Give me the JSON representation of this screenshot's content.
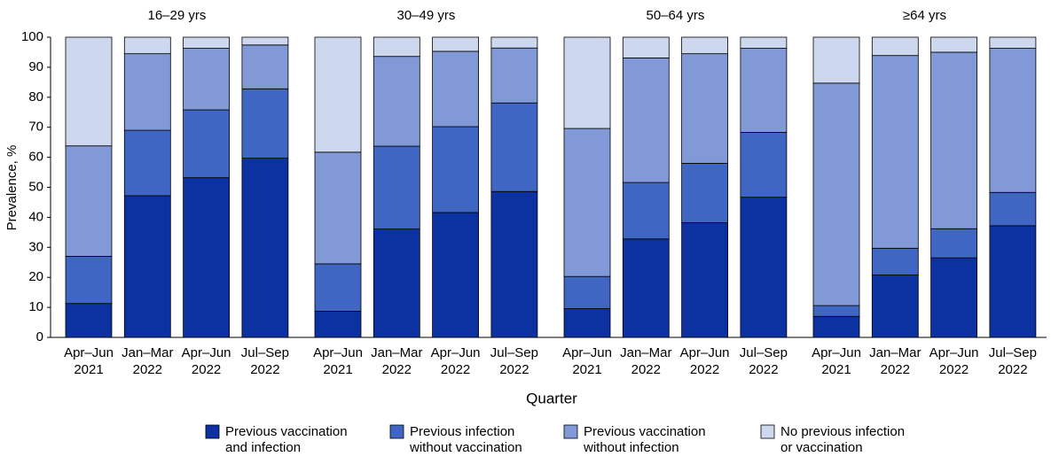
{
  "chart_data": {
    "type": "stacked_bar",
    "y_label": "Prevalence, %",
    "x_label": "Quarter",
    "groups": [
      "16–29 yrs",
      "30–49 yrs",
      "50–64 yrs",
      "≥64 yrs"
    ],
    "categories": [
      [
        "Apr–Jun",
        "2021"
      ],
      [
        "Jan–Mar",
        "2022"
      ],
      [
        "Apr–Jun",
        "2022"
      ],
      [
        "Jul–Sep",
        "2022"
      ],
      [
        "Apr–Jun",
        "2021"
      ],
      [
        "Jan–Mar",
        "2022"
      ],
      [
        "Apr–Jun",
        "2022"
      ],
      [
        "Jul–Sep",
        "2022"
      ],
      [
        "Apr–Jun",
        "2021"
      ],
      [
        "Jan–Mar",
        "2022"
      ],
      [
        "Apr–Jun",
        "2022"
      ],
      [
        "Jul–Sep",
        "2022"
      ],
      [
        "Apr–Jun",
        "2021"
      ],
      [
        "Jan–Mar",
        "2022"
      ],
      [
        "Apr–Jun",
        "2022"
      ],
      [
        "Jul–Sep",
        "2022"
      ]
    ],
    "series": [
      {
        "name": [
          "Previous vaccination",
          "and infection"
        ],
        "color": "#0b32a0",
        "values": [
          11.3,
          47.2,
          53.2,
          59.7,
          8.7,
          36.1,
          41.6,
          48.6,
          9.6,
          32.8,
          38.2,
          46.7,
          7,
          20.8,
          26.5,
          37.2
        ]
      },
      {
        "name": [
          "Previous infection",
          "without vaccination"
        ],
        "color": "#3f66c2",
        "values": [
          15.7,
          21.8,
          22.6,
          23.1,
          15.8,
          27.6,
          28.6,
          29.5,
          10.7,
          18.8,
          19.8,
          21.6,
          3.6,
          8.9,
          9.7,
          11.1
        ]
      },
      {
        "name": [
          "Previous vaccination",
          "without infection"
        ],
        "color": "#8299d7",
        "values": [
          36.8,
          25.5,
          20.5,
          14.6,
          37.2,
          29.9,
          25.1,
          18.3,
          49.3,
          41.5,
          36.5,
          28,
          74.1,
          64.2,
          58.8,
          48
        ]
      },
      {
        "name": [
          "No previous infection",
          "or vaccination"
        ],
        "color": "#cdd8ef",
        "values": [
          36.2,
          5.5,
          3.7,
          2.6,
          38.3,
          6.4,
          4.7,
          3.6,
          30.4,
          6.9,
          5.5,
          3.7,
          15.3,
          6.1,
          5,
          3.7
        ]
      }
    ],
    "ylim": [
      0,
      100
    ],
    "yticks": [
      0,
      10,
      20,
      30,
      40,
      50,
      60,
      70,
      80,
      90,
      100
    ],
    "grid": false
  }
}
